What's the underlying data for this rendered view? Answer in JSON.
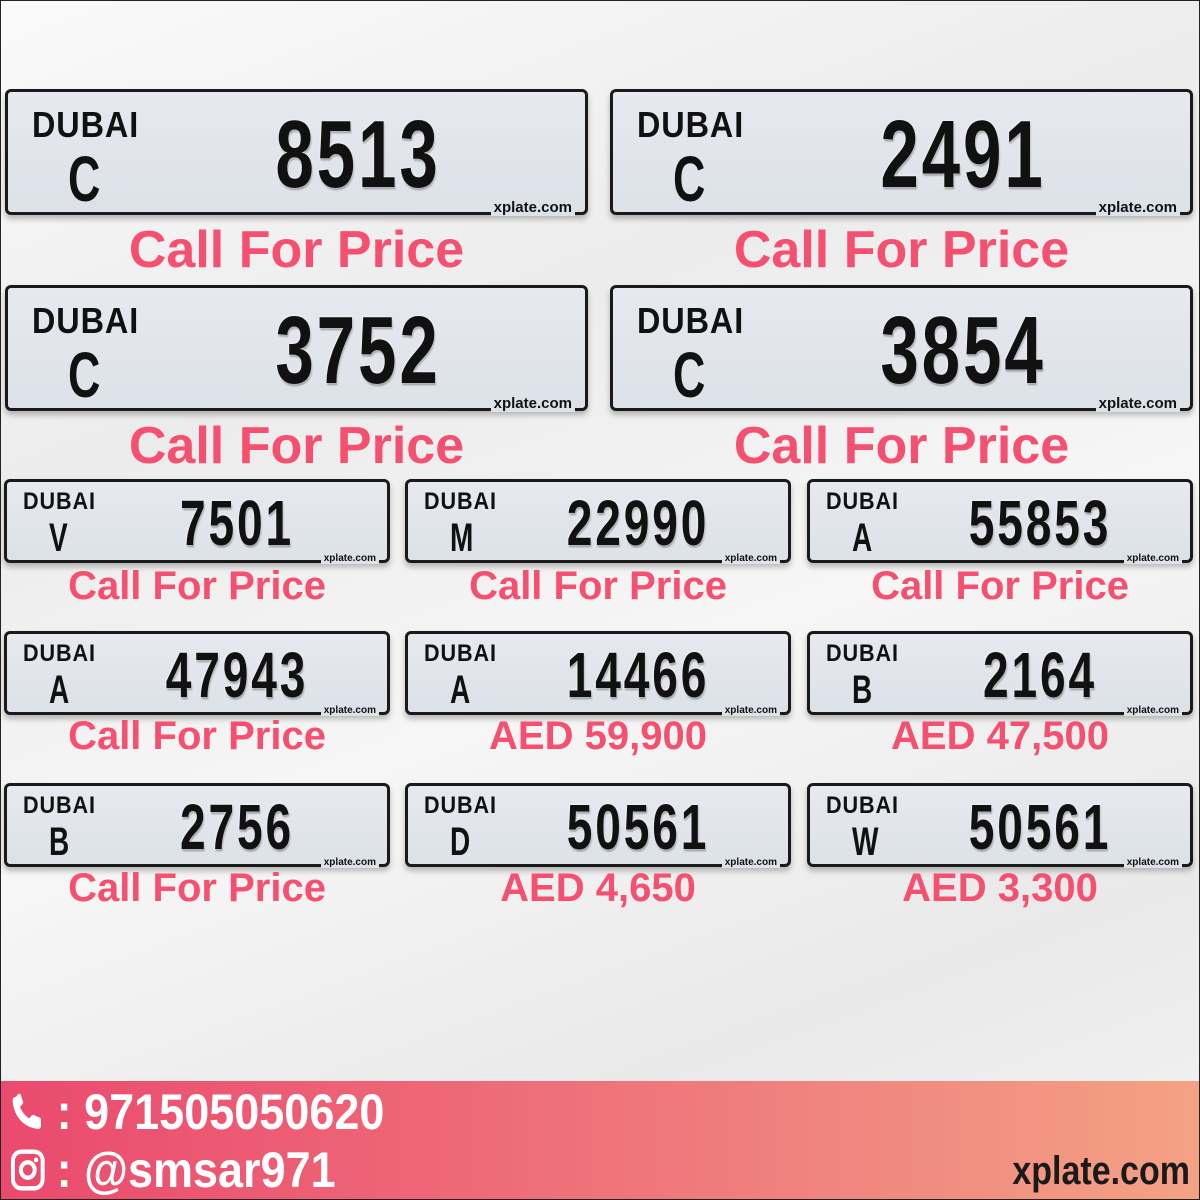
{
  "plates": [
    {
      "emirate": "DUBAI",
      "code": "C",
      "number": "8513",
      "site": "xplate.com",
      "price": "Call For Price"
    },
    {
      "emirate": "DUBAI",
      "code": "C",
      "number": "2491",
      "site": "xplate.com",
      "price": "Call For Price"
    },
    {
      "emirate": "DUBAI",
      "code": "C",
      "number": "3752",
      "site": "xplate.com",
      "price": "Call For Price"
    },
    {
      "emirate": "DUBAI",
      "code": "C",
      "number": "3854",
      "site": "xplate.com",
      "price": "Call For Price"
    },
    {
      "emirate": "DUBAI",
      "code": "V",
      "number": "7501",
      "site": "xplate.com",
      "price": "Call For Price"
    },
    {
      "emirate": "DUBAI",
      "code": "M",
      "number": "22990",
      "site": "xplate.com",
      "price": "Call For Price"
    },
    {
      "emirate": "DUBAI",
      "code": "A",
      "number": "55853",
      "site": "xplate.com",
      "price": "Call For Price"
    },
    {
      "emirate": "DUBAI",
      "code": "A",
      "number": "47943",
      "site": "xplate.com",
      "price": "Call For Price"
    },
    {
      "emirate": "DUBAI",
      "code": "A",
      "number": "14466",
      "site": "xplate.com",
      "price": "AED 59,900"
    },
    {
      "emirate": "DUBAI",
      "code": "B",
      "number": "2164",
      "site": "xplate.com",
      "price": "AED 47,500"
    },
    {
      "emirate": "DUBAI",
      "code": "B",
      "number": "2756",
      "site": "xplate.com",
      "price": "Call For Price"
    },
    {
      "emirate": "DUBAI",
      "code": "D",
      "number": "50561",
      "site": "xplate.com",
      "price": "AED 4,650"
    },
    {
      "emirate": "DUBAI",
      "code": "W",
      "number": "50561",
      "site": "xplate.com",
      "price": "AED 3,300"
    }
  ],
  "footer": {
    "phone_icon": "phone-icon",
    "phone": ": 971505050620",
    "instagram_icon": "instagram-icon",
    "instagram": ": @smsar971",
    "site": "xplate.com"
  },
  "colors": {
    "price": "#f5506f",
    "footer_start": "#ea4a6e",
    "footer_end": "#f4a284"
  }
}
